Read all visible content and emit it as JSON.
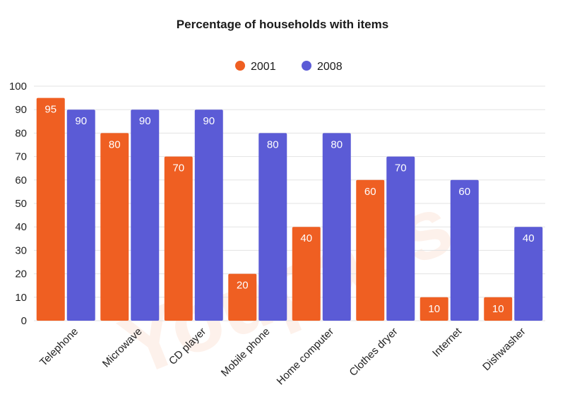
{
  "chart_data": {
    "type": "bar",
    "title": "Percentage of households with items",
    "categories": [
      "Telephone",
      "Microwave",
      "CD player",
      "Mobile phone",
      "Home computer",
      "Clothes dryer",
      "Internet",
      "Dishwasher"
    ],
    "series": [
      {
        "name": "2001",
        "color": "#ef5f22",
        "values": [
          95,
          80,
          70,
          20,
          40,
          60,
          10,
          10
        ]
      },
      {
        "name": "2008",
        "color": "#5b5bd6",
        "values": [
          90,
          90,
          90,
          80,
          80,
          70,
          60,
          40
        ]
      }
    ],
    "yticks": [
      0,
      10,
      20,
      30,
      40,
      50,
      60,
      70,
      80,
      90,
      100
    ],
    "ylim": [
      0,
      100
    ],
    "xlabel": "",
    "ylabel": "",
    "legend": "top-center",
    "grid": true
  }
}
